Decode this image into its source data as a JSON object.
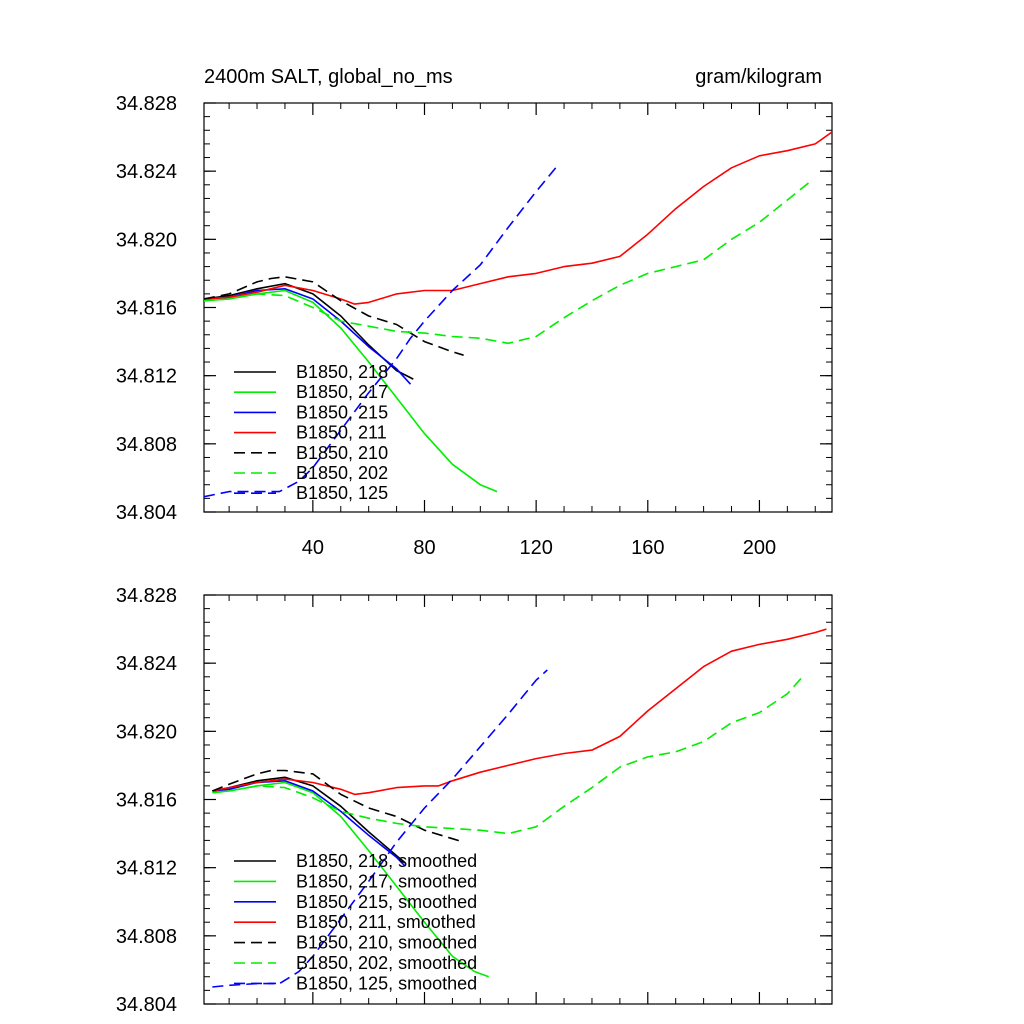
{
  "chart_data": [
    {
      "type": "line",
      "title_left": "2400m SALT, global_no_ms",
      "title_right": "gram/kilogram",
      "xlabel": "",
      "ylabel": "",
      "xlim": [
        1,
        226
      ],
      "ylim": [
        34.804,
        34.828
      ],
      "xticks": [
        40,
        80,
        120,
        160,
        200
      ],
      "xtick_labels": [
        "40",
        "80",
        "120",
        "160",
        "200"
      ],
      "yticks": [
        34.804,
        34.808,
        34.812,
        34.816,
        34.82,
        34.824,
        34.828
      ],
      "ytick_labels": [
        "34.804",
        "34.808",
        "34.812",
        "34.816",
        "34.820",
        "34.824",
        "34.828"
      ],
      "legend_position": "bottom-left",
      "series": [
        {
          "name": "B1850, 218",
          "color": "#000000",
          "dash": "solid",
          "x": [
            1,
            10,
            20,
            30,
            40,
            50,
            60,
            70,
            76
          ],
          "y": [
            34.8165,
            34.8167,
            34.8171,
            34.8174,
            34.8168,
            34.8155,
            34.8138,
            34.8123,
            34.8118
          ]
        },
        {
          "name": "B1850, 217",
          "color": "#00ee00",
          "dash": "solid",
          "x": [
            1,
            10,
            20,
            30,
            40,
            50,
            60,
            70,
            80,
            90,
            100,
            106
          ],
          "y": [
            34.8164,
            34.8165,
            34.8168,
            34.817,
            34.8163,
            34.8148,
            34.8128,
            34.8107,
            34.8086,
            34.8068,
            34.8056,
            34.8052
          ]
        },
        {
          "name": "B1850, 215",
          "color": "#0000ff",
          "dash": "solid",
          "x": [
            1,
            10,
            20,
            30,
            40,
            50,
            60,
            70,
            75
          ],
          "y": [
            34.8165,
            34.8166,
            34.817,
            34.8171,
            34.8165,
            34.8152,
            34.8137,
            34.8124,
            34.8115
          ]
        },
        {
          "name": "B1850, 211",
          "color": "#ff0000",
          "dash": "solid",
          "x": [
            1,
            10,
            20,
            30,
            40,
            50,
            55,
            60,
            70,
            80,
            90,
            100,
            110,
            120,
            130,
            140,
            150,
            160,
            170,
            180,
            190,
            200,
            210,
            220,
            226
          ],
          "y": [
            34.8165,
            34.8166,
            34.8169,
            34.8173,
            34.817,
            34.8165,
            34.8162,
            34.8163,
            34.8168,
            34.817,
            34.817,
            34.8174,
            34.8178,
            34.818,
            34.8184,
            34.8186,
            34.819,
            34.8203,
            34.8218,
            34.8231,
            34.8242,
            34.8249,
            34.8252,
            34.8256,
            34.8263
          ]
        },
        {
          "name": "B1850, 210",
          "color": "#000000",
          "dash": "dashed",
          "x": [
            1,
            10,
            20,
            25,
            30,
            40,
            50,
            60,
            70,
            80,
            90,
            94
          ],
          "y": [
            34.8165,
            34.8168,
            34.8175,
            34.8177,
            34.8178,
            34.8175,
            34.8164,
            34.8155,
            34.815,
            34.814,
            34.8134,
            34.8132
          ]
        },
        {
          "name": "B1850, 202",
          "color": "#00ee00",
          "dash": "dashed",
          "x": [
            1,
            10,
            20,
            30,
            40,
            50,
            60,
            70,
            80,
            90,
            100,
            110,
            120,
            130,
            140,
            150,
            160,
            170,
            180,
            190,
            200,
            210,
            219
          ],
          "y": [
            34.8164,
            34.8165,
            34.8168,
            34.8167,
            34.816,
            34.8152,
            34.8149,
            34.8146,
            34.8145,
            34.8143,
            34.8142,
            34.8139,
            34.8143,
            34.8154,
            34.8164,
            34.8173,
            34.818,
            34.8184,
            34.8188,
            34.82,
            34.821,
            34.8223,
            34.8235
          ]
        },
        {
          "name": "B1850, 125",
          "color": "#0000ff",
          "dash": "dashed",
          "x": [
            1,
            10,
            20,
            28,
            35,
            40,
            50,
            60,
            70,
            75,
            80,
            90,
            100,
            110,
            120,
            127
          ],
          "y": [
            34.8049,
            34.8052,
            34.8052,
            34.8052,
            34.8058,
            34.8066,
            34.8088,
            34.811,
            34.813,
            34.8142,
            34.8152,
            34.817,
            34.8185,
            34.8207,
            34.8228,
            34.8242
          ]
        }
      ]
    },
    {
      "type": "line",
      "title_left": "",
      "title_right": "",
      "xlabel": "",
      "ylabel": "",
      "xlim": [
        1,
        226
      ],
      "ylim": [
        34.804,
        34.828
      ],
      "xticks": [
        40,
        80,
        120,
        160,
        200
      ],
      "xtick_labels": [],
      "yticks": [
        34.804,
        34.808,
        34.812,
        34.816,
        34.82,
        34.824,
        34.828
      ],
      "ytick_labels": [
        "34.804",
        "34.808",
        "34.812",
        "34.816",
        "34.820",
        "34.824",
        "34.828"
      ],
      "legend_position": "bottom-left",
      "series": [
        {
          "name": "B1850, 218, smoothed",
          "color": "#000000",
          "dash": "solid",
          "x": [
            4,
            10,
            20,
            30,
            40,
            50,
            60,
            70,
            73
          ],
          "y": [
            34.8165,
            34.8167,
            34.8171,
            34.8173,
            34.8168,
            34.8156,
            34.8141,
            34.8127,
            34.8123
          ]
        },
        {
          "name": "B1850, 217, smoothed",
          "color": "#00ee00",
          "dash": "solid",
          "x": [
            4,
            10,
            20,
            30,
            40,
            50,
            60,
            70,
            80,
            90,
            98,
            103
          ],
          "y": [
            34.8164,
            34.8165,
            34.8168,
            34.817,
            34.8164,
            34.815,
            34.813,
            34.8109,
            34.8088,
            34.8068,
            34.8059,
            34.8056
          ]
        },
        {
          "name": "B1850, 215, smoothed",
          "color": "#0000ff",
          "dash": "solid",
          "x": [
            4,
            10,
            20,
            30,
            40,
            50,
            60,
            70,
            73
          ],
          "y": [
            34.8165,
            34.8166,
            34.817,
            34.8171,
            34.8165,
            34.8153,
            34.8139,
            34.8126,
            34.8121
          ]
        },
        {
          "name": "B1850, 211, smoothed",
          "color": "#ff0000",
          "dash": "solid",
          "x": [
            4,
            10,
            20,
            30,
            40,
            50,
            55,
            60,
            70,
            80,
            85,
            90,
            100,
            110,
            120,
            130,
            140,
            150,
            160,
            170,
            180,
            190,
            200,
            210,
            220,
            224
          ],
          "y": [
            34.8165,
            34.8167,
            34.817,
            34.8172,
            34.817,
            34.8166,
            34.8163,
            34.8164,
            34.8167,
            34.8168,
            34.8168,
            34.8171,
            34.8176,
            34.818,
            34.8184,
            34.8187,
            34.8189,
            34.8197,
            34.8212,
            34.8225,
            34.8238,
            34.8247,
            34.8251,
            34.8254,
            34.8258,
            34.826
          ]
        },
        {
          "name": "B1850, 210, smoothed",
          "color": "#000000",
          "dash": "dashed",
          "x": [
            4,
            10,
            20,
            25,
            30,
            40,
            50,
            60,
            70,
            80,
            90,
            94
          ],
          "y": [
            34.8165,
            34.8169,
            34.8175,
            34.8177,
            34.8177,
            34.8175,
            34.8163,
            34.8155,
            34.815,
            34.8142,
            34.8137,
            34.8135
          ]
        },
        {
          "name": "B1850, 202, smoothed",
          "color": "#00ee00",
          "dash": "dashed",
          "x": [
            4,
            10,
            20,
            30,
            40,
            50,
            60,
            70,
            80,
            90,
            100,
            110,
            120,
            130,
            140,
            150,
            160,
            170,
            180,
            190,
            200,
            210,
            216
          ],
          "y": [
            34.8164,
            34.8165,
            34.8168,
            34.8167,
            34.8161,
            34.8153,
            34.8149,
            34.8146,
            34.8144,
            34.8143,
            34.8142,
            34.814,
            34.8144,
            34.8156,
            34.8167,
            34.8179,
            34.8185,
            34.8188,
            34.8194,
            34.8205,
            34.8211,
            34.8222,
            34.8233
          ]
        },
        {
          "name": "B1850, 125, smoothed",
          "color": "#0000ff",
          "dash": "dashed",
          "x": [
            4,
            10,
            20,
            28,
            35,
            40,
            50,
            60,
            70,
            78,
            80,
            90,
            100,
            110,
            120,
            124
          ],
          "y": [
            34.805,
            34.8051,
            34.8052,
            34.8052,
            34.8059,
            34.8068,
            34.809,
            34.8112,
            34.8135,
            34.8151,
            34.8155,
            34.8172,
            34.8191,
            34.821,
            34.823,
            34.8236
          ]
        }
      ]
    }
  ]
}
